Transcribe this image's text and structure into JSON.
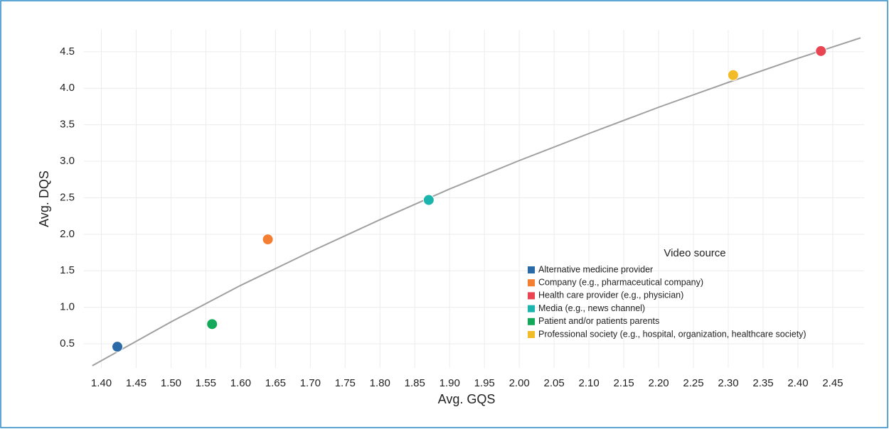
{
  "chart_data": {
    "type": "scatter",
    "xlabel": "Avg. GQS",
    "ylabel": "Avg. DQS",
    "legend_title": "Video source",
    "legend_position": "lower right",
    "grid": true,
    "xlim": [
      1.375,
      2.495
    ],
    "ylim": [
      0.17,
      4.8
    ],
    "xticks": [
      {
        "value": 1.4,
        "label": "1.40"
      },
      1.45,
      {
        "value": 1.5,
        "label": "1.50"
      },
      1.55,
      {
        "value": 1.6,
        "label": "1.60"
      },
      1.65,
      {
        "value": 1.7,
        "label": "1.70"
      },
      1.75,
      {
        "value": 1.8,
        "label": "1.80"
      },
      1.85,
      {
        "value": 1.9,
        "label": "1.90"
      },
      1.95,
      {
        "value": 2.0,
        "label": "2.00"
      },
      2.05,
      {
        "value": 2.1,
        "label": "2.10"
      },
      2.15,
      {
        "value": 2.2,
        "label": "2.20"
      },
      2.25,
      {
        "value": 2.3,
        "label": "2.30"
      },
      2.35,
      {
        "value": 2.4,
        "label": "2.40"
      },
      2.45
    ],
    "yticks": [
      0.5,
      {
        "value": 1.0,
        "label": "1.0"
      },
      1.5,
      {
        "value": 2.0,
        "label": "2.0"
      },
      2.5,
      {
        "value": 3.0,
        "label": "3.0"
      },
      3.5,
      {
        "value": 4.0,
        "label": "4.0"
      },
      4.5
    ],
    "series": [
      {
        "name": "Alternative medicine provider",
        "color": "#2a6aa6",
        "x": [
          1.423
        ],
        "values": [
          0.46
        ]
      },
      {
        "name": "Company (e.g., pharmaceutical company)",
        "color": "#f47f32",
        "x": [
          1.639
        ],
        "values": [
          1.93
        ]
      },
      {
        "name": "Health care provider (e.g., physician)",
        "color": "#e94452",
        "x": [
          2.433
        ],
        "values": [
          4.51
        ]
      },
      {
        "name": "Media (e.g., news channel)",
        "color": "#1cb5ad",
        "x": [
          1.87
        ],
        "values": [
          2.47
        ]
      },
      {
        "name": "Patient and/or patients parents",
        "color": "#14a85a",
        "x": [
          1.559
        ],
        "values": [
          0.77
        ]
      },
      {
        "name": "Professional society (e.g., hospital, organization, healthcare society)",
        "color": "#f2bc28",
        "x": [
          2.307
        ],
        "values": [
          4.18
        ]
      }
    ],
    "trend": {
      "color": "#a0a0a0",
      "x": [
        1.387,
        1.5,
        1.6,
        1.7,
        1.8,
        1.9,
        2.0,
        2.1,
        2.2,
        2.3,
        2.4,
        2.49
      ],
      "values": [
        0.2,
        0.8,
        1.3,
        1.76,
        2.2,
        2.62,
        3.01,
        3.38,
        3.74,
        4.08,
        4.41,
        4.69
      ]
    }
  }
}
